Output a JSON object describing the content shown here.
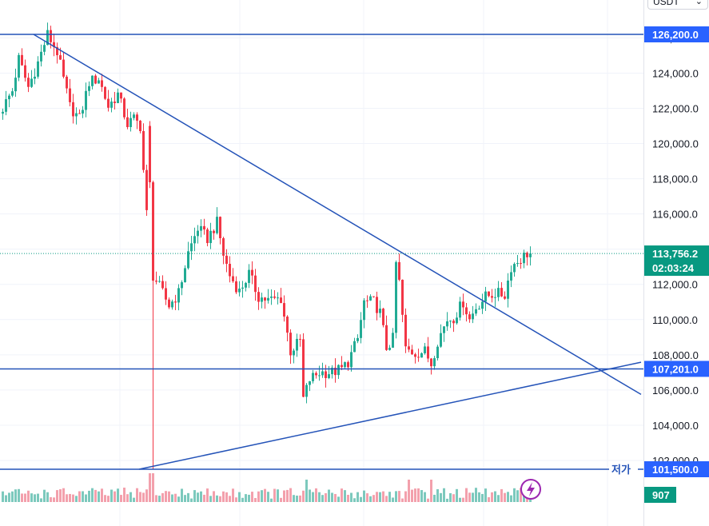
{
  "currency_select": {
    "value": "USDT",
    "chevron_icon": "chevron-down-icon"
  },
  "colors": {
    "up": "#22ab94",
    "down": "#f23645",
    "up_vol": "#7cc9bd",
    "down_vol": "#f3a0ac",
    "line": "#2453b8",
    "tag_blue": "#2962ff",
    "tag_green": "#089981"
  },
  "lightning_icon": "lightning-icon",
  "chart_data": {
    "type": "candlestick",
    "ylim": [
      101000,
      128000
    ],
    "yticks": [
      102000,
      104000,
      106000,
      108000,
      110000,
      112000,
      114000,
      116000,
      118000,
      120000,
      122000,
      124000,
      126000
    ],
    "ytick_labels": [
      "102,000.0",
      "104,000.0",
      "106,000.0",
      "108,000.0",
      "110,000.0",
      "112,000.0",
      "114,000.0",
      "116,000.0",
      "118,000.0",
      "120,000.0",
      "122,000.0",
      "124,000.0",
      "126,000.0"
    ],
    "bar_count": 166,
    "horizontal_lines": [
      {
        "price": 126200,
        "label": "126,200.0"
      },
      {
        "price": 107201,
        "label": "107,201.0"
      },
      {
        "price": 101500,
        "label": "101,500.0",
        "tag": "저가"
      }
    ],
    "trendlines": [
      {
        "name": "descending",
        "from": [
          10,
          126200
        ],
        "to": [
          200,
          105750
        ]
      },
      {
        "name": "ascending",
        "from": [
          43,
          101500
        ],
        "to": [
          200,
          107580
        ]
      }
    ],
    "last_price": {
      "value": "113,756.2",
      "countdown": "02:03:24",
      "price": 113756.2
    },
    "volume_last": "907",
    "anchors": [
      [
        0,
        121700
      ],
      [
        4,
        123000
      ],
      [
        6,
        124800
      ],
      [
        9,
        123200
      ],
      [
        12,
        124600
      ],
      [
        15,
        126200
      ],
      [
        18,
        125200
      ],
      [
        22,
        122100
      ],
      [
        25,
        121400
      ],
      [
        28,
        123500
      ],
      [
        31,
        123700
      ],
      [
        34,
        122100
      ],
      [
        37,
        122800
      ],
      [
        40,
        121100
      ],
      [
        42,
        121400
      ],
      [
        44,
        121000
      ],
      [
        46,
        116000
      ],
      [
        47,
        112800
      ],
      [
        49,
        112200
      ],
      [
        51,
        111500
      ],
      [
        53,
        110800
      ],
      [
        56,
        111500
      ],
      [
        59,
        113800
      ],
      [
        62,
        115200
      ],
      [
        65,
        114600
      ],
      [
        68,
        115500
      ],
      [
        70,
        113700
      ],
      [
        72,
        112500
      ],
      [
        75,
        111600
      ],
      [
        78,
        112600
      ],
      [
        81,
        111300
      ],
      [
        84,
        111100
      ],
      [
        88,
        111200
      ],
      [
        91,
        108200
      ],
      [
        94,
        108800
      ],
      [
        95,
        105500
      ],
      [
        97,
        106600
      ],
      [
        100,
        107000
      ],
      [
        104,
        107000
      ],
      [
        107,
        107200
      ],
      [
        109,
        107600
      ],
      [
        112,
        108900
      ],
      [
        114,
        111000
      ],
      [
        117,
        111000
      ],
      [
        119,
        110400
      ],
      [
        121,
        108400
      ],
      [
        123,
        108900
      ],
      [
        124,
        113200
      ],
      [
        125,
        112100
      ],
      [
        127,
        108300
      ],
      [
        130,
        108100
      ],
      [
        133,
        108200
      ],
      [
        135,
        107500
      ],
      [
        137,
        108800
      ],
      [
        140,
        110000
      ],
      [
        142,
        110100
      ],
      [
        145,
        111000
      ],
      [
        147,
        110000
      ],
      [
        149,
        110700
      ],
      [
        152,
        111300
      ],
      [
        155,
        111500
      ],
      [
        158,
        111400
      ],
      [
        160,
        113000
      ],
      [
        165,
        113756
      ]
    ]
  }
}
